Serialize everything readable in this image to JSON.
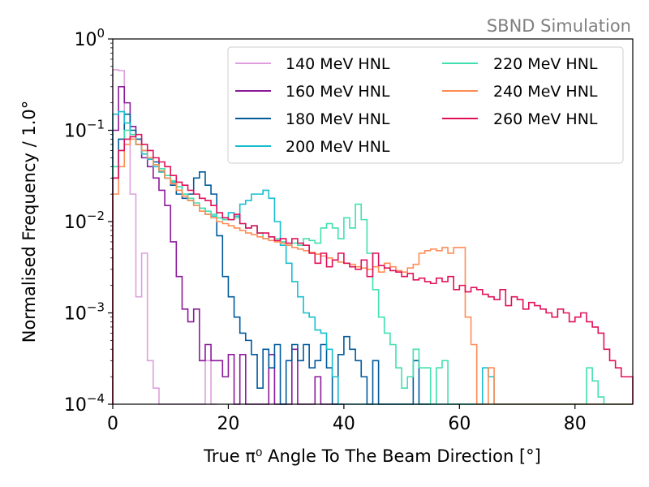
{
  "chart_data": {
    "type": "step-histogram",
    "annotation": "SBND Simulation",
    "xlabel": "True π⁰ Angle To The Beam Direction [°]",
    "ylabel": "Normalised Frequency / 1.0°",
    "xlim": [
      0,
      90
    ],
    "ylim": [
      0.0001,
      1
    ],
    "yscale": "log",
    "grid": false,
    "legend_position": "top-right",
    "legend_columns": 2,
    "x_ticks": [
      {
        "value": 0,
        "label": "0"
      },
      {
        "value": 20,
        "label": "20"
      },
      {
        "value": 40,
        "label": "40"
      },
      {
        "value": 60,
        "label": "60"
      },
      {
        "value": 80,
        "label": "80"
      }
    ],
    "y_ticks": [
      {
        "value": 1,
        "base": "10",
        "exp": "0"
      },
      {
        "value": 0.1,
        "base": "10",
        "exp": "−1"
      },
      {
        "value": 0.01,
        "base": "10",
        "exp": "−2"
      },
      {
        "value": 0.001,
        "base": "10",
        "exp": "−3"
      },
      {
        "value": 0.0001,
        "base": "10",
        "exp": "−4"
      }
    ],
    "bin_width": 1,
    "series": [
      {
        "name": "140 MeV HNL",
        "color": "#dda0dd",
        "values": [
          0.46,
          0.45,
          0.1,
          0.02,
          0.0015,
          0.0045,
          0.0003,
          0.00015,
          0.0001,
          0,
          0,
          0,
          0,
          0,
          0,
          0,
          0.0003,
          0
        ]
      },
      {
        "name": "160 MeV HNL",
        "color": "#8b1a9b",
        "values": [
          0.1,
          0.3,
          0.2,
          0.11,
          0.07,
          0.05,
          0.04,
          0.03,
          0.022,
          0.015,
          0.006,
          0.0025,
          0.0011,
          0.0008,
          0.0011,
          0.0003,
          0.00045,
          0.0003,
          0.0003,
          0.0002,
          0.00035,
          0.0001,
          0.00035,
          0.0001,
          0.0001,
          0.0001,
          0.0001,
          0.00035,
          0.0001,
          0.0001,
          0.0001,
          0.0004,
          0.0001,
          0.0001,
          0.0001,
          0.0002,
          0.0001,
          0.0001,
          0.0001,
          0.0001
        ]
      },
      {
        "name": "180 MeV HNL",
        "color": "#005a9c",
        "values": [
          0.03,
          0.08,
          0.15,
          0.1,
          0.08,
          0.06,
          0.05,
          0.045,
          0.035,
          0.03,
          0.025,
          0.02,
          0.018,
          0.02,
          0.03,
          0.035,
          0.025,
          0.02,
          0.007,
          0.0025,
          0.0015,
          0.0009,
          0.0006,
          0.0005,
          0.00035,
          0.00015,
          0.0004,
          0.00025,
          0.00045,
          0.0001,
          0.0003,
          0.00045,
          0.0003,
          0.00045,
          0.00025,
          0.0003,
          0.00045,
          0.00025,
          0.0001,
          0.00035,
          0.00055,
          0.0004,
          0.0003,
          0.0002,
          0.0001,
          0.0003,
          0.0001,
          0.0001,
          0.0001,
          0.0001,
          0.0001,
          0.0001,
          0.0003,
          0.0001,
          0.0001
        ]
      },
      {
        "name": "200 MeV HNL",
        "color": "#17becf",
        "values": [
          0.15,
          0.16,
          0.12,
          0.09,
          0.07,
          0.055,
          0.048,
          0.04,
          0.035,
          0.03,
          0.027,
          0.024,
          0.02,
          0.017,
          0.015,
          0.014,
          0.012,
          0.0115,
          0.011,
          0.0105,
          0.0125,
          0.0115,
          0.0155,
          0.017,
          0.02,
          0.02,
          0.022,
          0.018,
          0.01,
          0.0055,
          0.0035,
          0.0022,
          0.0015,
          0.001,
          0.0009,
          0.00065,
          0.0006,
          0.0004,
          0.0002,
          0.0001,
          0.0001,
          0.0001,
          0.0001,
          0.0001,
          0.0001,
          0.0001,
          0.0001,
          0.0001,
          0.0001,
          0.0001,
          0.0001,
          0.0001,
          0.0001,
          0.0001,
          0.0001,
          0.0001,
          0.0001,
          0.0001,
          0.0001,
          0.0001,
          0.0001,
          0.0001,
          0.0001,
          0.0001,
          0.00025,
          0.0002,
          0.0001,
          0.0001,
          0.0001,
          0.0001,
          0.0001,
          0.0001,
          0.0001,
          0.0001,
          0.0001,
          0.0001,
          0.0001,
          0.0001,
          0.0001,
          0.0001,
          0.0001,
          0.0001,
          0.0001,
          0.0001,
          0.0001,
          0.0001,
          0.0001,
          0.0001,
          0.0001,
          0.0001
        ]
      },
      {
        "name": "220 MeV HNL",
        "color": "#40e0b0",
        "values": [
          0.04,
          0.06,
          0.1,
          0.09,
          0.07,
          0.06,
          0.05,
          0.042,
          0.038,
          0.032,
          0.028,
          0.024,
          0.02,
          0.018,
          0.016,
          0.014,
          0.013,
          0.012,
          0.011,
          0.0105,
          0.0105,
          0.011,
          0.0095,
          0.0085,
          0.009,
          0.0075,
          0.0065,
          0.0068,
          0.0065,
          0.006,
          0.0055,
          0.0058,
          0.0055,
          0.0065,
          0.0062,
          0.0058,
          0.0085,
          0.0095,
          0.0085,
          0.0065,
          0.011,
          0.0085,
          0.0155,
          0.0105,
          0.0045,
          0.0018,
          0.0009,
          0.0006,
          0.00045,
          0.00025,
          0.00015,
          0.0002,
          0.0004,
          0.00025,
          0.00025,
          0.0001,
          0.00025,
          0.0003,
          0.0001,
          0.0001,
          0.0001,
          0.0001,
          0.0001,
          0.0001,
          0.0001,
          0.0001,
          0.0001,
          0.0001,
          0.0001,
          0.0001,
          0.0001,
          0.0001,
          0.0001,
          0.0001,
          0.0001,
          0.0001,
          0.0001,
          0.0001,
          0.0001,
          0.0001,
          0.0001,
          0.0001,
          0.00025,
          0.00018,
          0.00012,
          0.0001,
          0.0001,
          0.0001,
          0.0001,
          0.0001
        ]
      },
      {
        "name": "240 MeV HNL",
        "color": "#ff8c55",
        "values": [
          0.02,
          0.04,
          0.07,
          0.08,
          0.07,
          0.06,
          0.05,
          0.042,
          0.036,
          0.03,
          0.026,
          0.022,
          0.019,
          0.017,
          0.015,
          0.013,
          0.012,
          0.011,
          0.01,
          0.0095,
          0.009,
          0.0085,
          0.008,
          0.0075,
          0.0072,
          0.0068,
          0.0065,
          0.0062,
          0.006,
          0.0058,
          0.0055,
          0.0052,
          0.005,
          0.0048,
          0.0046,
          0.0044,
          0.0042,
          0.004,
          0.0038,
          0.0036,
          0.0035,
          0.0034,
          0.0032,
          0.0031,
          0.003,
          0.0032,
          0.0028,
          0.0035,
          0.0032,
          0.0029,
          0.0028,
          0.0031,
          0.0034,
          0.0045,
          0.0048,
          0.005,
          0.0048,
          0.0052,
          0.0045,
          0.0052,
          0.0052,
          0.0009,
          0.00045,
          0.0001,
          0.0001,
          0.00025,
          0.0001,
          0.0001,
          0.0001,
          0.0001,
          0.0001,
          0.0001,
          0.0001,
          0.0001,
          0.0001,
          0.0001,
          0.0001,
          0.0001,
          0.0001,
          0.0001,
          0.0001,
          0.0001,
          0.0001,
          0.0001,
          0.0001,
          0.0001,
          0.0001,
          0.0001,
          0.0001,
          0.0001
        ]
      },
      {
        "name": "260 MeV HNL",
        "color": "#e0105a",
        "values": [
          0.03,
          0.06,
          0.08,
          0.085,
          0.09,
          0.07,
          0.06,
          0.05,
          0.045,
          0.04,
          0.032,
          0.027,
          0.025,
          0.022,
          0.02,
          0.018,
          0.017,
          0.015,
          0.0125,
          0.011,
          0.0105,
          0.012,
          0.0095,
          0.0085,
          0.009,
          0.0075,
          0.0075,
          0.0068,
          0.0062,
          0.0065,
          0.0058,
          0.0065,
          0.0058,
          0.0055,
          0.0045,
          0.0035,
          0.0045,
          0.0032,
          0.0038,
          0.0045,
          0.0035,
          0.0032,
          0.003,
          0.0038,
          0.0025,
          0.0045,
          0.0033,
          0.0031,
          0.0029,
          0.0028,
          0.0025,
          0.0027,
          0.0023,
          0.0024,
          0.0022,
          0.0021,
          0.0024,
          0.0022,
          0.0025,
          0.0018,
          0.002,
          0.0017,
          0.0019,
          0.0018,
          0.0016,
          0.0015,
          0.0014,
          0.0018,
          0.0012,
          0.0015,
          0.0014,
          0.0011,
          0.0013,
          0.0012,
          0.0011,
          0.001,
          0.0009,
          0.0011,
          0.001,
          0.0008,
          0.0009,
          0.001,
          0.0008,
          0.0007,
          0.0006,
          0.0004,
          0.0003,
          0.00025,
          0.0002,
          0.0002
        ]
      }
    ]
  }
}
